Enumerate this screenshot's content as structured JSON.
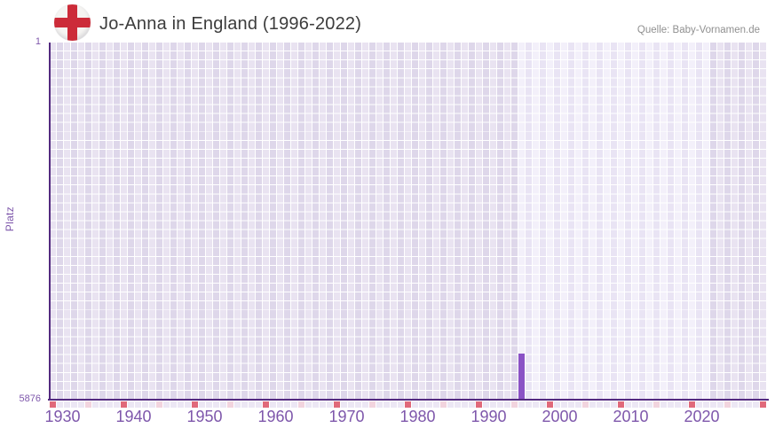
{
  "header": {
    "title": "Jo-Anna in England (1996-2022)",
    "source": "Quelle: Baby-Vornamen.de",
    "flag_icon": "england-flag"
  },
  "chart_data": {
    "type": "bar",
    "title": "Jo-Anna in England (1996-2022)",
    "ylabel": "Platz",
    "xlabel": "",
    "y_axis": {
      "top_label": "1",
      "bottom_label": "5876",
      "inverted": true,
      "range": [
        1,
        5876
      ],
      "gridlines": "cell-grid"
    },
    "x_axis": {
      "year_start": 1930,
      "year_end": 2030,
      "tick_labels": [
        "1930",
        "1940",
        "1950",
        "1960",
        "1970",
        "1980",
        "1990",
        "2000",
        "2010",
        "2020"
      ],
      "minor_tick_every": 5,
      "major_tick_every": 10
    },
    "highlight_period": {
      "start": 1996,
      "end": 2022,
      "meaning": "data availability period shown lighter"
    },
    "series": [
      {
        "name": "Platz",
        "points": [
          {
            "year": 1996,
            "rank": 5876
          }
        ]
      }
    ],
    "bar_visual": {
      "year": 1996,
      "height_fraction": 0.129
    },
    "legend": "none",
    "colors": {
      "bar": "#8a52c5",
      "axis_line": "#532a80",
      "tick_text": "#7e57ab",
      "title_text": "#3c3c3c",
      "source_text": "#909090",
      "col_dark_a": "#e9e3f1",
      "col_dark_b": "#ded7ea",
      "col_light_a": "#f3f0fa",
      "col_light_b": "#e9e4f4",
      "strip_decade": "#e0697a",
      "strip_half_decade": "#f2d4de",
      "strip_default": "#ece7f4",
      "flag_red": "#cc2b39",
      "flag_white": "#f5f4f2"
    }
  }
}
